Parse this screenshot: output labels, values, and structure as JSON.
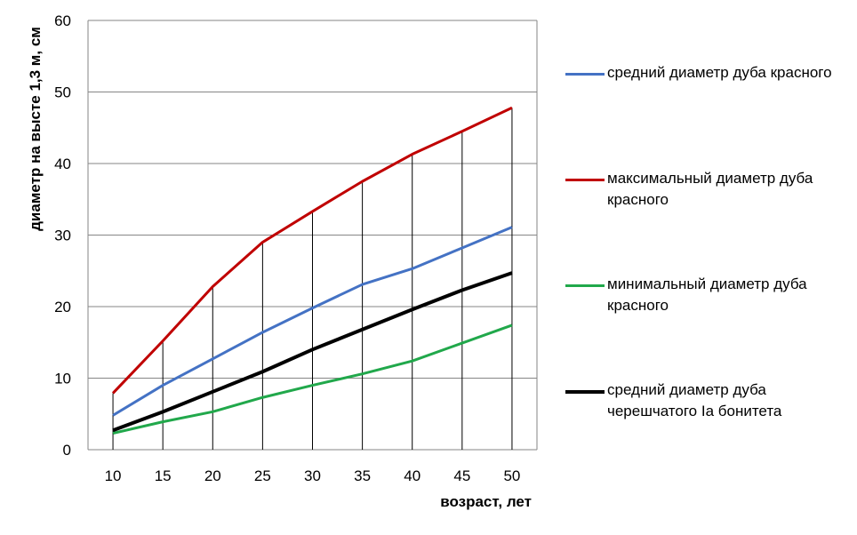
{
  "chart_data": {
    "type": "line",
    "xlabel": "возраст, лет",
    "ylabel": "диаметр на высте 1,3 м, см",
    "categories": [
      "10",
      "15",
      "20",
      "25",
      "30",
      "35",
      "40",
      "45",
      "50"
    ],
    "ylim": [
      0,
      60
    ],
    "yticks": [
      "0",
      "10",
      "20",
      "30",
      "40",
      "50",
      "60"
    ],
    "grid": "horizontal",
    "drop_lines": true,
    "legend_position": "right",
    "series": [
      {
        "name": "средний диаметр дуба красного",
        "color": "#4472C4",
        "values": [
          4.8,
          9.0,
          12.7,
          16.4,
          19.8,
          23.1,
          25.3,
          28.2,
          31.1
        ]
      },
      {
        "name": "максимальный диаметр дуба красного",
        "color": "#C00000",
        "values": [
          7.9,
          15.2,
          22.8,
          29.0,
          33.3,
          37.5,
          41.3,
          44.5,
          47.8
        ]
      },
      {
        "name": "минимальный диаметр дуба красного",
        "color": "#21A84B",
        "values": [
          2.3,
          3.9,
          5.3,
          7.3,
          9.0,
          10.6,
          12.4,
          14.9,
          17.4
        ]
      },
      {
        "name": "средний диаметр дуба черешчатого Iа бонитета",
        "color": "#000000",
        "values": [
          2.7,
          5.3,
          8.1,
          10.9,
          14.0,
          16.8,
          19.6,
          22.3,
          24.7
        ]
      }
    ]
  }
}
